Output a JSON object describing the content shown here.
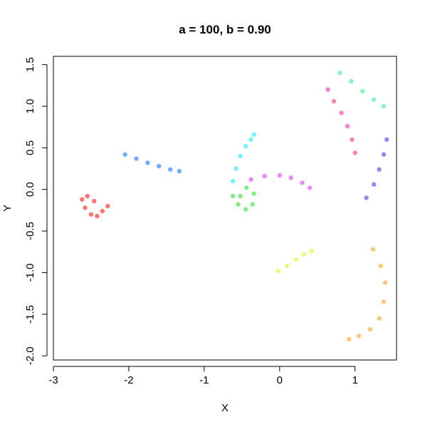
{
  "chart_data": {
    "type": "scatter",
    "title": "a = 100, b = 0.90",
    "xlabel": "X",
    "ylabel": "Y",
    "xlim": [
      -3.0,
      1.55
    ],
    "ylim": [
      -2.05,
      1.6
    ],
    "x_ticks": [
      -3,
      -2,
      -1,
      0,
      1
    ],
    "x_tick_labels": [
      "-3",
      "-2",
      "-1",
      "0",
      "1"
    ],
    "y_ticks": [
      -2.0,
      -1.5,
      -1.0,
      -0.5,
      0.0,
      0.5,
      1.0,
      1.5
    ],
    "y_tick_labels": [
      "-2.0",
      "-1.5",
      "-1.0",
      "-0.5",
      "0.0",
      "0.5",
      "1.0",
      "1.5"
    ],
    "grid": false,
    "legend": "none",
    "series": [
      {
        "color": "#ff0000",
        "points": [
          [
            -2.62,
            -0.12
          ],
          [
            -2.58,
            -0.22
          ],
          [
            -2.5,
            -0.3
          ],
          [
            -2.42,
            -0.32
          ],
          [
            -2.35,
            -0.26
          ],
          [
            -2.28,
            -0.2
          ],
          [
            -2.55,
            -0.08
          ],
          [
            -2.46,
            -0.14
          ]
        ]
      },
      {
        "color": "#0066ff",
        "points": [
          [
            -2.05,
            0.42
          ],
          [
            -1.9,
            0.37
          ],
          [
            -1.75,
            0.32
          ],
          [
            -1.6,
            0.28
          ],
          [
            -1.45,
            0.24
          ],
          [
            -1.33,
            0.22
          ]
        ]
      },
      {
        "color": "#00e5ff",
        "points": [
          [
            -0.62,
            0.1
          ],
          [
            -0.58,
            0.25
          ],
          [
            -0.52,
            0.4
          ],
          [
            -0.45,
            0.52
          ],
          [
            -0.38,
            0.6
          ],
          [
            -0.34,
            0.66
          ]
        ]
      },
      {
        "color": "#22dd22",
        "points": [
          [
            -0.62,
            -0.08
          ],
          [
            -0.55,
            -0.18
          ],
          [
            -0.45,
            -0.24
          ],
          [
            -0.36,
            -0.18
          ],
          [
            -0.34,
            -0.05
          ],
          [
            -0.44,
            0.02
          ],
          [
            -0.52,
            -0.08
          ]
        ]
      },
      {
        "color": "#dd22ff",
        "points": [
          [
            -0.38,
            0.12
          ],
          [
            -0.2,
            0.16
          ],
          [
            0.0,
            0.17
          ],
          [
            0.15,
            0.14
          ],
          [
            0.3,
            0.08
          ],
          [
            0.4,
            0.02
          ]
        ]
      },
      {
        "color": "#ccff00",
        "points": [
          [
            -0.02,
            -0.98
          ],
          [
            0.1,
            -0.92
          ],
          [
            0.22,
            -0.84
          ],
          [
            0.32,
            -0.78
          ],
          [
            0.42,
            -0.74
          ]
        ]
      },
      {
        "color": "#ff9900",
        "points": [
          [
            1.24,
            -0.72
          ],
          [
            1.34,
            -0.92
          ],
          [
            1.4,
            -1.12
          ],
          [
            1.38,
            -1.35
          ],
          [
            1.32,
            -1.55
          ],
          [
            1.2,
            -1.68
          ],
          [
            1.05,
            -1.76
          ],
          [
            0.92,
            -1.8
          ]
        ]
      },
      {
        "color": "#ff1493",
        "points": [
          [
            0.64,
            1.2
          ],
          [
            0.72,
            1.06
          ],
          [
            0.82,
            0.92
          ],
          [
            0.9,
            0.76
          ],
          [
            0.96,
            0.6
          ],
          [
            1.0,
            0.44
          ]
        ]
      },
      {
        "color": "#22ee88",
        "points": [
          [
            0.8,
            1.4
          ],
          [
            0.95,
            1.3
          ],
          [
            1.1,
            1.18
          ],
          [
            1.25,
            1.08
          ],
          [
            1.38,
            1.0
          ]
        ]
      },
      {
        "color": "#4422ee",
        "points": [
          [
            1.42,
            0.6
          ],
          [
            1.38,
            0.42
          ],
          [
            1.32,
            0.24
          ],
          [
            1.25,
            0.06
          ],
          [
            1.15,
            -0.1
          ]
        ]
      }
    ]
  }
}
